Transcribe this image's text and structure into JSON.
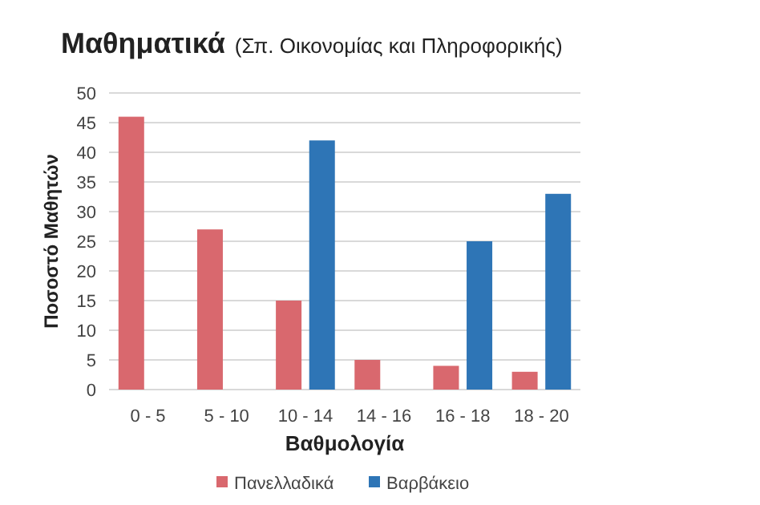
{
  "chart_data": {
    "type": "bar",
    "title": "Μαθηματικά",
    "subtitle": "(Σπ. Οικονομίας και Πληροφορικής)",
    "xlabel": "Βαθμολογία",
    "ylabel": "Ποσοστό Μαθητών",
    "categories": [
      "0 - 5",
      "5 - 10",
      "10 - 14",
      "14 - 16",
      "16 - 18",
      "18 - 20"
    ],
    "series": [
      {
        "name": "Πανελλαδικά",
        "color": "#d9686e",
        "values": [
          46,
          27,
          15,
          5,
          4,
          3
        ]
      },
      {
        "name": "Βαρβάκειο",
        "color": "#2e75b6",
        "values": [
          0,
          0,
          42,
          0,
          25,
          33
        ]
      }
    ],
    "ylim": [
      0,
      50
    ],
    "yticks": [
      0,
      5,
      10,
      15,
      20,
      25,
      30,
      35,
      40,
      45,
      50
    ],
    "grid": "y",
    "legend": "bottom"
  }
}
